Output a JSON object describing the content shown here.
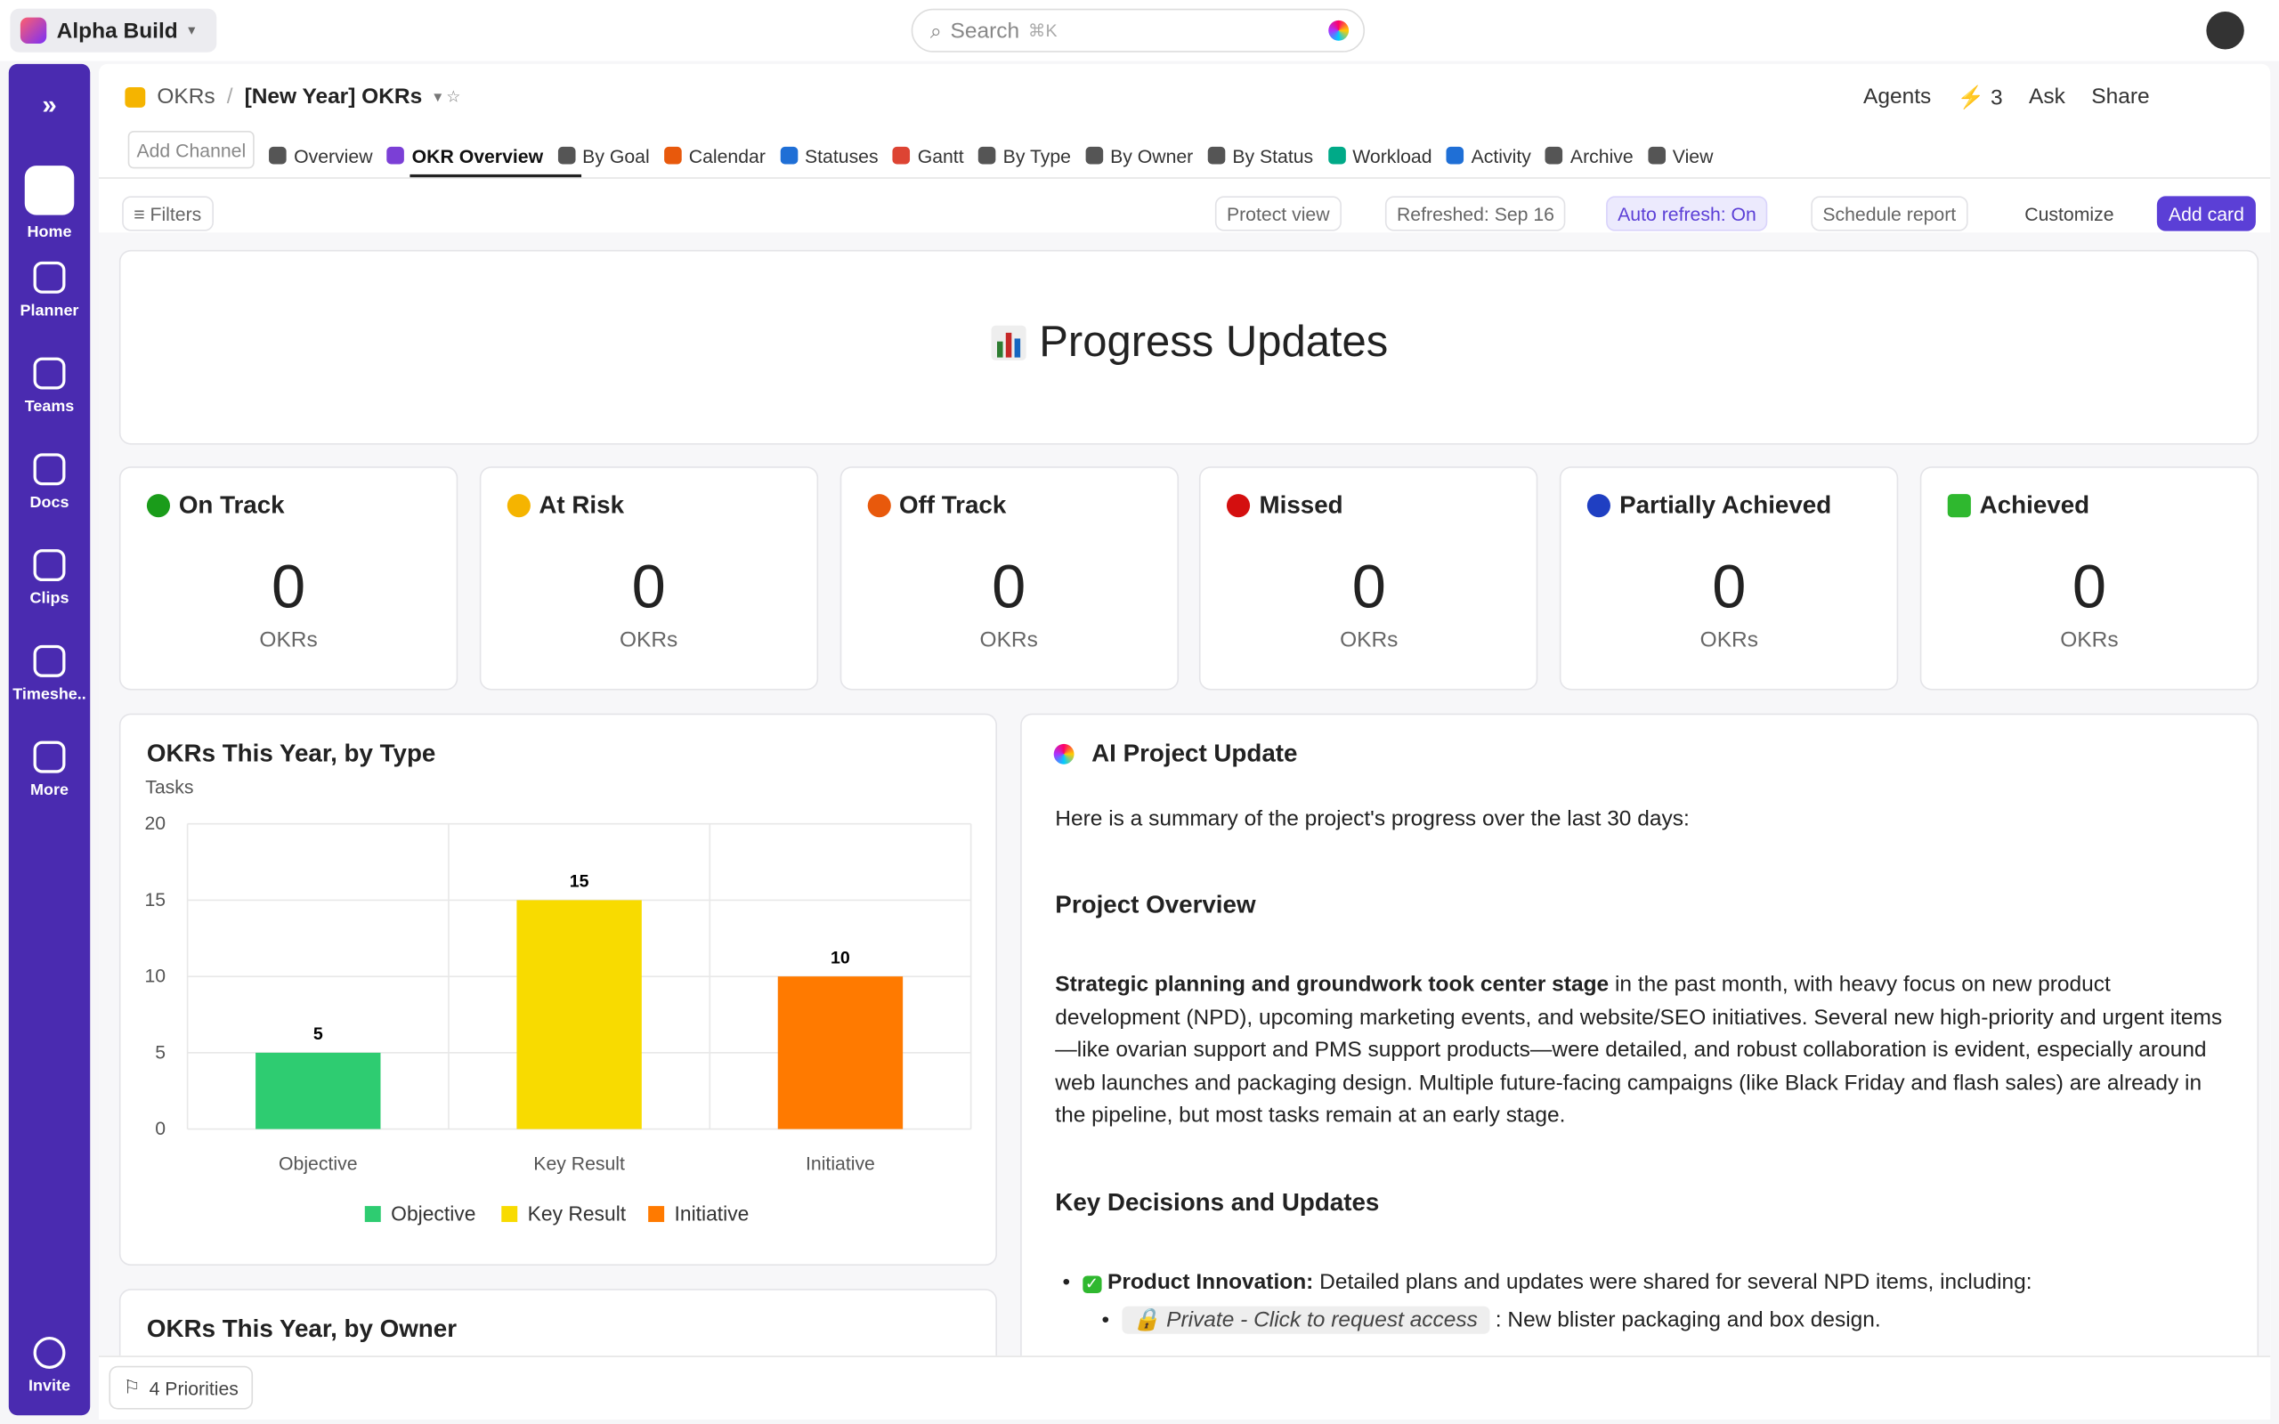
{
  "workspace": "Alpha Build",
  "search": {
    "placeholder": "Search",
    "shortcut": "⌘K"
  },
  "sidebar": [
    "Home",
    "Planner",
    "Teams",
    "Docs",
    "Clips",
    "Timeshe..",
    "More"
  ],
  "sidebar_bottom": "Invite",
  "breadcrumb": [
    "OKRs",
    "[New Year] OKRs"
  ],
  "header_actions": {
    "agents": "Agents",
    "count": 3,
    "ask": "Ask",
    "share": "Share"
  },
  "tabs": [
    "Add Channel",
    "Overview",
    "OKR Overview",
    "By Goal",
    "Calendar",
    "Statuses",
    "Gantt",
    "By Type",
    "By Owner",
    "By Status",
    "Workload",
    "Activity",
    "Archive",
    "View"
  ],
  "toolbar": {
    "filters": "Filters",
    "buttons": [
      "Protect view",
      "Refreshed: Sep 16",
      "Auto refresh: On",
      "Schedule report",
      "Customize"
    ],
    "primary": "Add card"
  },
  "page_title": "Progress Updates",
  "status_cards": [
    {
      "label": "On Track",
      "count": 0,
      "unit": "OKRs",
      "color": "#1a9c1a"
    },
    {
      "label": "At Risk",
      "count": 0,
      "unit": "OKRs",
      "color": "#f5b400"
    },
    {
      "label": "Off Track",
      "count": 0,
      "unit": "OKRs",
      "color": "#e8590c"
    },
    {
      "label": "Missed",
      "count": 0,
      "unit": "OKRs",
      "color": "#d40f0f"
    },
    {
      "label": "Partially Achieved",
      "count": 0,
      "unit": "OKRs",
      "color": "#1f3fc2"
    },
    {
      "label": "Achieved",
      "count": 0,
      "unit": "OKRs",
      "color": "#2fb82f"
    }
  ],
  "chart_data": {
    "type": "bar",
    "title": "OKRs This Year, by Type",
    "y_label": "Tasks",
    "categories": [
      "Objective",
      "Key Result",
      "Initiative"
    ],
    "values": [
      5,
      15,
      10
    ],
    "colors": [
      "#2ecc71",
      "#f8db00",
      "#ff7a00"
    ],
    "ylim": [
      0,
      20
    ],
    "yticks": [
      0,
      5,
      10,
      15,
      20
    ],
    "grid": true,
    "legend": "bottom"
  },
  "ai_update": {
    "title": "AI Project Update",
    "intro": "Here is a summary of the project's progress over the last 30 days:",
    "overview_heading": "Project Overview",
    "overview_lead": "Strategic planning and groundwork took center stage",
    "overview_text": " in the past month, with heavy focus on new product development (NPD), upcoming marketing events, and website/SEO initiatives. Several new high-priority and urgent items—like ovarian support and PMS support products—were detailed, and robust collaboration is evident, especially around web launches and packaging design. Multiple future-facing campaigns (like Black Friday and flash sales) are already in the pipeline, but most tasks remain at an early stage.",
    "decisions_heading": "Key Decisions and Updates",
    "bullet_lead": "Product Innovation:",
    "bullet_text": " Detailed plans and updates were shared for several NPD items, including:",
    "private_link": "Private - Click to request access",
    "sub_text": ": New blister packaging and box design."
  },
  "owner_card_title": "OKRs This Year, by Owner",
  "footer": "4 Priorities"
}
